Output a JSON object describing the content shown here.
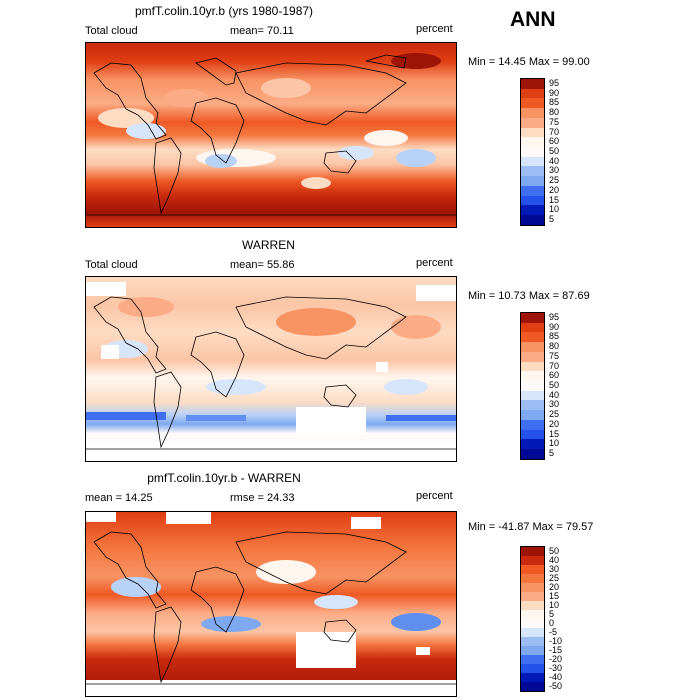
{
  "season": "ANN",
  "colors": {
    "pos": [
      "#fff7ef",
      "#fddcc4",
      "#fcc5a6",
      "#fbac86",
      "#f89364",
      "#f4773f",
      "#ee5924",
      "#e03e13",
      "#c92a0d",
      "#9e1407"
    ],
    "neg": [
      "#fffafa",
      "#d7e5fb",
      "#b8d1f7",
      "#9bbdf4",
      "#7ea8f0",
      "#608ff0",
      "#3f6ff0",
      "#2351ea",
      "#1031d2",
      "#0019b7",
      "#000896"
    ]
  },
  "panels": [
    {
      "title": "pmfT.colin.10yr.b (yrs 1980-1987)",
      "left_label": "Total cloud",
      "stat_label": "mean=  70.11",
      "units": "percent",
      "minmax": "Min =  14.45 Max =  99.00",
      "colorbar_labels": [
        "95",
        "90",
        "85",
        "80",
        "75",
        "70",
        "60",
        "50",
        "40",
        "30",
        "25",
        "20",
        "15",
        "10",
        "5"
      ],
      "n_pos": 7
    },
    {
      "title": "WARREN",
      "left_label": "Total cloud",
      "stat_label": "mean=  55.86",
      "units": "percent",
      "minmax": "Min =  10.73 Max =  87.69",
      "colorbar_labels": [
        "95",
        "90",
        "85",
        "80",
        "75",
        "70",
        "60",
        "50",
        "40",
        "30",
        "25",
        "20",
        "15",
        "10",
        "5"
      ],
      "n_pos": 7
    },
    {
      "title": "pmfT.colin.10yr.b - WARREN",
      "left_label": "mean =  14.25",
      "stat_label": "rmse =  24.33",
      "units": "percent",
      "minmax": "Min = -41.87 Max =  79.57",
      "colorbar_labels": [
        "50",
        "40",
        "30",
        "25",
        "20",
        "15",
        "10",
        "5",
        "0",
        "-5",
        "-10",
        "-15",
        "-20",
        "-30",
        "-40",
        "-50"
      ],
      "n_pos": 8
    }
  ]
}
